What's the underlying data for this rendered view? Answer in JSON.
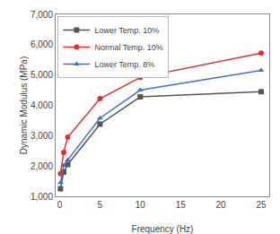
{
  "chart_data": {
    "type": "line",
    "xlabel": "Frequency (Hz)",
    "ylabel": "Dynamic Modulus (MPa)",
    "series": [
      {
        "name": "Lower Temp. 10%",
        "color": "#555555",
        "marker": "square",
        "line_style": "solid",
        "x": [
          0.1,
          0.5,
          1,
          5,
          10,
          25
        ],
        "values": [
          1250,
          1800,
          2050,
          3380,
          4280,
          4450
        ]
      },
      {
        "name": "Normal Temp. 10%",
        "color": "#e03030",
        "marker": "circle",
        "line_style": "solid",
        "x": [
          0.1,
          0.5,
          1,
          5,
          10,
          25
        ],
        "values": [
          1750,
          2450,
          2950,
          4220,
          4920,
          5720
        ]
      },
      {
        "name": "Lower Temp. 8%",
        "color": "#4472c4",
        "marker": "triangle-up",
        "line_style": "solid",
        "x": [
          0.1,
          0.5,
          1,
          5,
          10,
          25
        ],
        "values": [
          1450,
          2020,
          2200,
          3580,
          4500,
          5150
        ]
      }
    ],
    "xlim": [
      -0.5,
      26
    ],
    "xticks": [
      0,
      5,
      10,
      15,
      20,
      25
    ],
    "ylim": [
      1000,
      7000
    ],
    "yticks": [
      {
        "value": 1000,
        "label": "1,000"
      },
      {
        "value": 2000,
        "label": "2,000"
      },
      {
        "value": 3000,
        "label": "3,000"
      },
      {
        "value": 4000,
        "label": "4,000"
      },
      {
        "value": 5000,
        "label": "5,000"
      },
      {
        "value": 6000,
        "label": "6,000"
      },
      {
        "value": 7000,
        "label": "7,000"
      }
    ],
    "grid": false,
    "legend": "upper left"
  }
}
